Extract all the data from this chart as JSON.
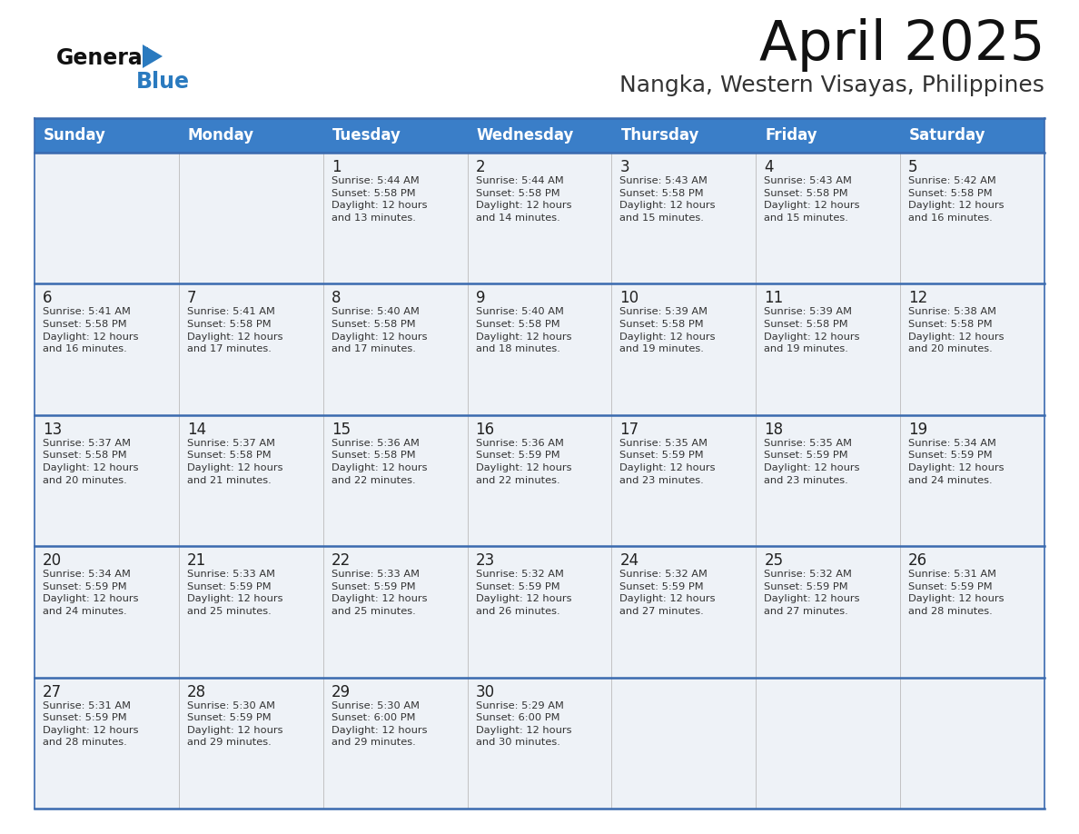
{
  "title": "April 2025",
  "subtitle": "Nangka, Western Visayas, Philippines",
  "header_bg": "#3a7ec8",
  "header_text_color": "#ffffff",
  "cell_bg_light": "#eef2f7",
  "border_color": "#3a6aaf",
  "text_color": "#222222",
  "info_text_color": "#333333",
  "days_of_week": [
    "Sunday",
    "Monday",
    "Tuesday",
    "Wednesday",
    "Thursday",
    "Friday",
    "Saturday"
  ],
  "weeks": [
    [
      {
        "day": "",
        "info": ""
      },
      {
        "day": "",
        "info": ""
      },
      {
        "day": "1",
        "info": "Sunrise: 5:44 AM\nSunset: 5:58 PM\nDaylight: 12 hours\nand 13 minutes."
      },
      {
        "day": "2",
        "info": "Sunrise: 5:44 AM\nSunset: 5:58 PM\nDaylight: 12 hours\nand 14 minutes."
      },
      {
        "day": "3",
        "info": "Sunrise: 5:43 AM\nSunset: 5:58 PM\nDaylight: 12 hours\nand 15 minutes."
      },
      {
        "day": "4",
        "info": "Sunrise: 5:43 AM\nSunset: 5:58 PM\nDaylight: 12 hours\nand 15 minutes."
      },
      {
        "day": "5",
        "info": "Sunrise: 5:42 AM\nSunset: 5:58 PM\nDaylight: 12 hours\nand 16 minutes."
      }
    ],
    [
      {
        "day": "6",
        "info": "Sunrise: 5:41 AM\nSunset: 5:58 PM\nDaylight: 12 hours\nand 16 minutes."
      },
      {
        "day": "7",
        "info": "Sunrise: 5:41 AM\nSunset: 5:58 PM\nDaylight: 12 hours\nand 17 minutes."
      },
      {
        "day": "8",
        "info": "Sunrise: 5:40 AM\nSunset: 5:58 PM\nDaylight: 12 hours\nand 17 minutes."
      },
      {
        "day": "9",
        "info": "Sunrise: 5:40 AM\nSunset: 5:58 PM\nDaylight: 12 hours\nand 18 minutes."
      },
      {
        "day": "10",
        "info": "Sunrise: 5:39 AM\nSunset: 5:58 PM\nDaylight: 12 hours\nand 19 minutes."
      },
      {
        "day": "11",
        "info": "Sunrise: 5:39 AM\nSunset: 5:58 PM\nDaylight: 12 hours\nand 19 minutes."
      },
      {
        "day": "12",
        "info": "Sunrise: 5:38 AM\nSunset: 5:58 PM\nDaylight: 12 hours\nand 20 minutes."
      }
    ],
    [
      {
        "day": "13",
        "info": "Sunrise: 5:37 AM\nSunset: 5:58 PM\nDaylight: 12 hours\nand 20 minutes."
      },
      {
        "day": "14",
        "info": "Sunrise: 5:37 AM\nSunset: 5:58 PM\nDaylight: 12 hours\nand 21 minutes."
      },
      {
        "day": "15",
        "info": "Sunrise: 5:36 AM\nSunset: 5:58 PM\nDaylight: 12 hours\nand 22 minutes."
      },
      {
        "day": "16",
        "info": "Sunrise: 5:36 AM\nSunset: 5:59 PM\nDaylight: 12 hours\nand 22 minutes."
      },
      {
        "day": "17",
        "info": "Sunrise: 5:35 AM\nSunset: 5:59 PM\nDaylight: 12 hours\nand 23 minutes."
      },
      {
        "day": "18",
        "info": "Sunrise: 5:35 AM\nSunset: 5:59 PM\nDaylight: 12 hours\nand 23 minutes."
      },
      {
        "day": "19",
        "info": "Sunrise: 5:34 AM\nSunset: 5:59 PM\nDaylight: 12 hours\nand 24 minutes."
      }
    ],
    [
      {
        "day": "20",
        "info": "Sunrise: 5:34 AM\nSunset: 5:59 PM\nDaylight: 12 hours\nand 24 minutes."
      },
      {
        "day": "21",
        "info": "Sunrise: 5:33 AM\nSunset: 5:59 PM\nDaylight: 12 hours\nand 25 minutes."
      },
      {
        "day": "22",
        "info": "Sunrise: 5:33 AM\nSunset: 5:59 PM\nDaylight: 12 hours\nand 25 minutes."
      },
      {
        "day": "23",
        "info": "Sunrise: 5:32 AM\nSunset: 5:59 PM\nDaylight: 12 hours\nand 26 minutes."
      },
      {
        "day": "24",
        "info": "Sunrise: 5:32 AM\nSunset: 5:59 PM\nDaylight: 12 hours\nand 27 minutes."
      },
      {
        "day": "25",
        "info": "Sunrise: 5:32 AM\nSunset: 5:59 PM\nDaylight: 12 hours\nand 27 minutes."
      },
      {
        "day": "26",
        "info": "Sunrise: 5:31 AM\nSunset: 5:59 PM\nDaylight: 12 hours\nand 28 minutes."
      }
    ],
    [
      {
        "day": "27",
        "info": "Sunrise: 5:31 AM\nSunset: 5:59 PM\nDaylight: 12 hours\nand 28 minutes."
      },
      {
        "day": "28",
        "info": "Sunrise: 5:30 AM\nSunset: 5:59 PM\nDaylight: 12 hours\nand 29 minutes."
      },
      {
        "day": "29",
        "info": "Sunrise: 5:30 AM\nSunset: 6:00 PM\nDaylight: 12 hours\nand 29 minutes."
      },
      {
        "day": "30",
        "info": "Sunrise: 5:29 AM\nSunset: 6:00 PM\nDaylight: 12 hours\nand 30 minutes."
      },
      {
        "day": "",
        "info": ""
      },
      {
        "day": "",
        "info": ""
      },
      {
        "day": "",
        "info": ""
      }
    ]
  ]
}
